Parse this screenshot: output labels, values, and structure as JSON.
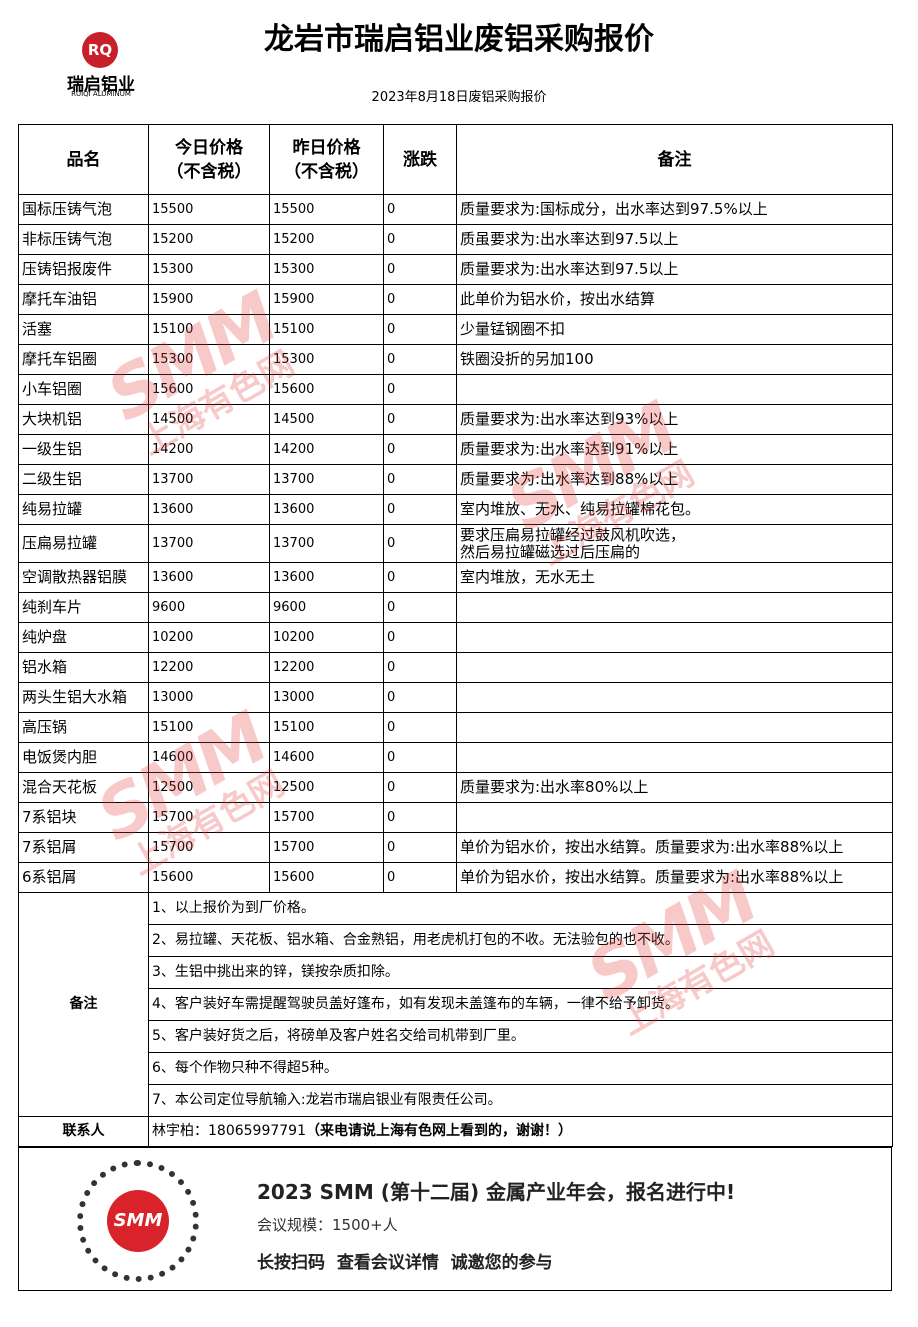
{
  "header": {
    "title": "龙岩市瑞启铝业废铝采购报价",
    "logo_mark": "RQ",
    "logo_name": "瑞启铝业",
    "logo_sub": "RUIQI ALUMINUM",
    "subtitle": "2023年8月18日废铝采购报价"
  },
  "table": {
    "columns": [
      "品名",
      "今日价格\n（不含税）",
      "昨日价格\n（不含税）",
      "涨跌",
      "备注"
    ],
    "rows": [
      {
        "name": "国标压铸气泡",
        "today": 15500,
        "yesterday": 15500,
        "change": 0,
        "note": "质量要求为:国标成分，出水率达到97.5%以上"
      },
      {
        "name": "非标压铸气泡",
        "today": 15200,
        "yesterday": 15200,
        "change": 0,
        "note": "质虽要求为:出水率达到97.5以上"
      },
      {
        "name": "压铸铝报废件",
        "today": 15300,
        "yesterday": 15300,
        "change": 0,
        "note": "质量要求为:出水率达到97.5以上"
      },
      {
        "name": "摩托车油铝",
        "today": 15900,
        "yesterday": 15900,
        "change": 0,
        "note": "此单价为铝水价，按出水结算"
      },
      {
        "name": "活塞",
        "today": 15100,
        "yesterday": 15100,
        "change": 0,
        "note": "少量锰钢圈不扣"
      },
      {
        "name": "摩托车铝圈",
        "today": 15300,
        "yesterday": 15300,
        "change": 0,
        "note": "铁圈没折的另加100"
      },
      {
        "name": "小车铝圈",
        "today": 15600,
        "yesterday": 15600,
        "change": 0
      },
      {
        "name": "大块机铝",
        "today": 14500,
        "yesterday": 14500,
        "change": 0,
        "note": "质量要求为:出水率达到93%以上"
      },
      {
        "name": "一级生铝",
        "today": 14200,
        "yesterday": 14200,
        "change": 0,
        "note": "质量要求为:出水率达到91%以上"
      },
      {
        "name": "二级生铝",
        "today": 13700,
        "yesterday": 13700,
        "change": 0,
        "note": "质量要求为:出水率达到88%以上"
      },
      {
        "name": "纯易拉罐",
        "today": 13600,
        "yesterday": 13600,
        "change": 0,
        "note": "室内堆放、无水、纯易拉罐棉花包。"
      },
      {
        "name": "压扁易拉罐",
        "today": 13700,
        "yesterday": 13700,
        "change": 0,
        "note": "要求压扁易拉罐经过鼓风机吹选，\n然后易拉罐磁选过后压扁的"
      },
      {
        "name": "空调散热器铝膜",
        "today": 13600,
        "yesterday": 13600,
        "change": 0,
        "note": "室内堆放，无水无土"
      },
      {
        "name": "纯刹车片",
        "today": 9600,
        "yesterday": 9600,
        "change": 0
      },
      {
        "name": "纯炉盘",
        "today": 10200,
        "yesterday": 10200,
        "change": 0
      },
      {
        "name": "铝水箱",
        "today": 12200,
        "yesterday": 12200,
        "change": 0
      },
      {
        "name": "两头生铝大水箱",
        "today": 13000,
        "yesterday": 13000,
        "change": 0
      },
      {
        "name": "高压锅",
        "today": 15100,
        "yesterday": 15100,
        "change": 0
      },
      {
        "name": "电饭煲内胆",
        "today": 14600,
        "yesterday": 14600,
        "change": 0
      },
      {
        "name": "混合天花板",
        "today": 12500,
        "yesterday": 12500,
        "change": 0,
        "note": "质量要求为:出水率80%以上"
      },
      {
        "name": "7系铝块",
        "today": 15700,
        "yesterday": 15700,
        "change": 0
      },
      {
        "name": "7系铝屑",
        "today": 15700,
        "yesterday": 15700,
        "change": 0,
        "note": "单价为铝水价，按出水结算。质量要求为:出水率88%以上"
      },
      {
        "name": "6系铝屑",
        "today": 15600,
        "yesterday": 15600,
        "change": 0,
        "note": "单价为铝水价，按出水结算。质量要求为:出水率88%以上"
      }
    ]
  },
  "notes": {
    "label": "备注",
    "items": [
      "1、以上报价为到厂价格。",
      "2、易拉罐、天花板、铝水箱、合金熟铝，用老虎机打包的不收。无法验包的也不收。",
      "3、生铝中挑出来的锌，镁按杂质扣除。",
      "4、客户装好车需提醒驾驶员盖好篷布，如有发现未盖篷布的车辆，一律不给予卸货。",
      "5、客户装好货之后，将磅单及客户姓名交给司机带到厂里。",
      "6、每个作物只种不得超5种。",
      "7、本公司定位导航输入:龙岩市瑞启银业有限责任公司。"
    ]
  },
  "contact": {
    "label": "联系人",
    "person": "林宇柏：18065997791",
    "remark": "（来电请说上海有色网上看到的，谢谢！）"
  },
  "banner": {
    "qr_mark": "SMM",
    "title": "2023 SMM (第十二届) 金属产业年会，报名进行中!",
    "scale": "会议规模：1500+人",
    "cta": "长按扫码  查看会议详情  诚邀您的参与"
  },
  "watermark": {
    "brand": "SMM",
    "name": "上海有色网"
  }
}
